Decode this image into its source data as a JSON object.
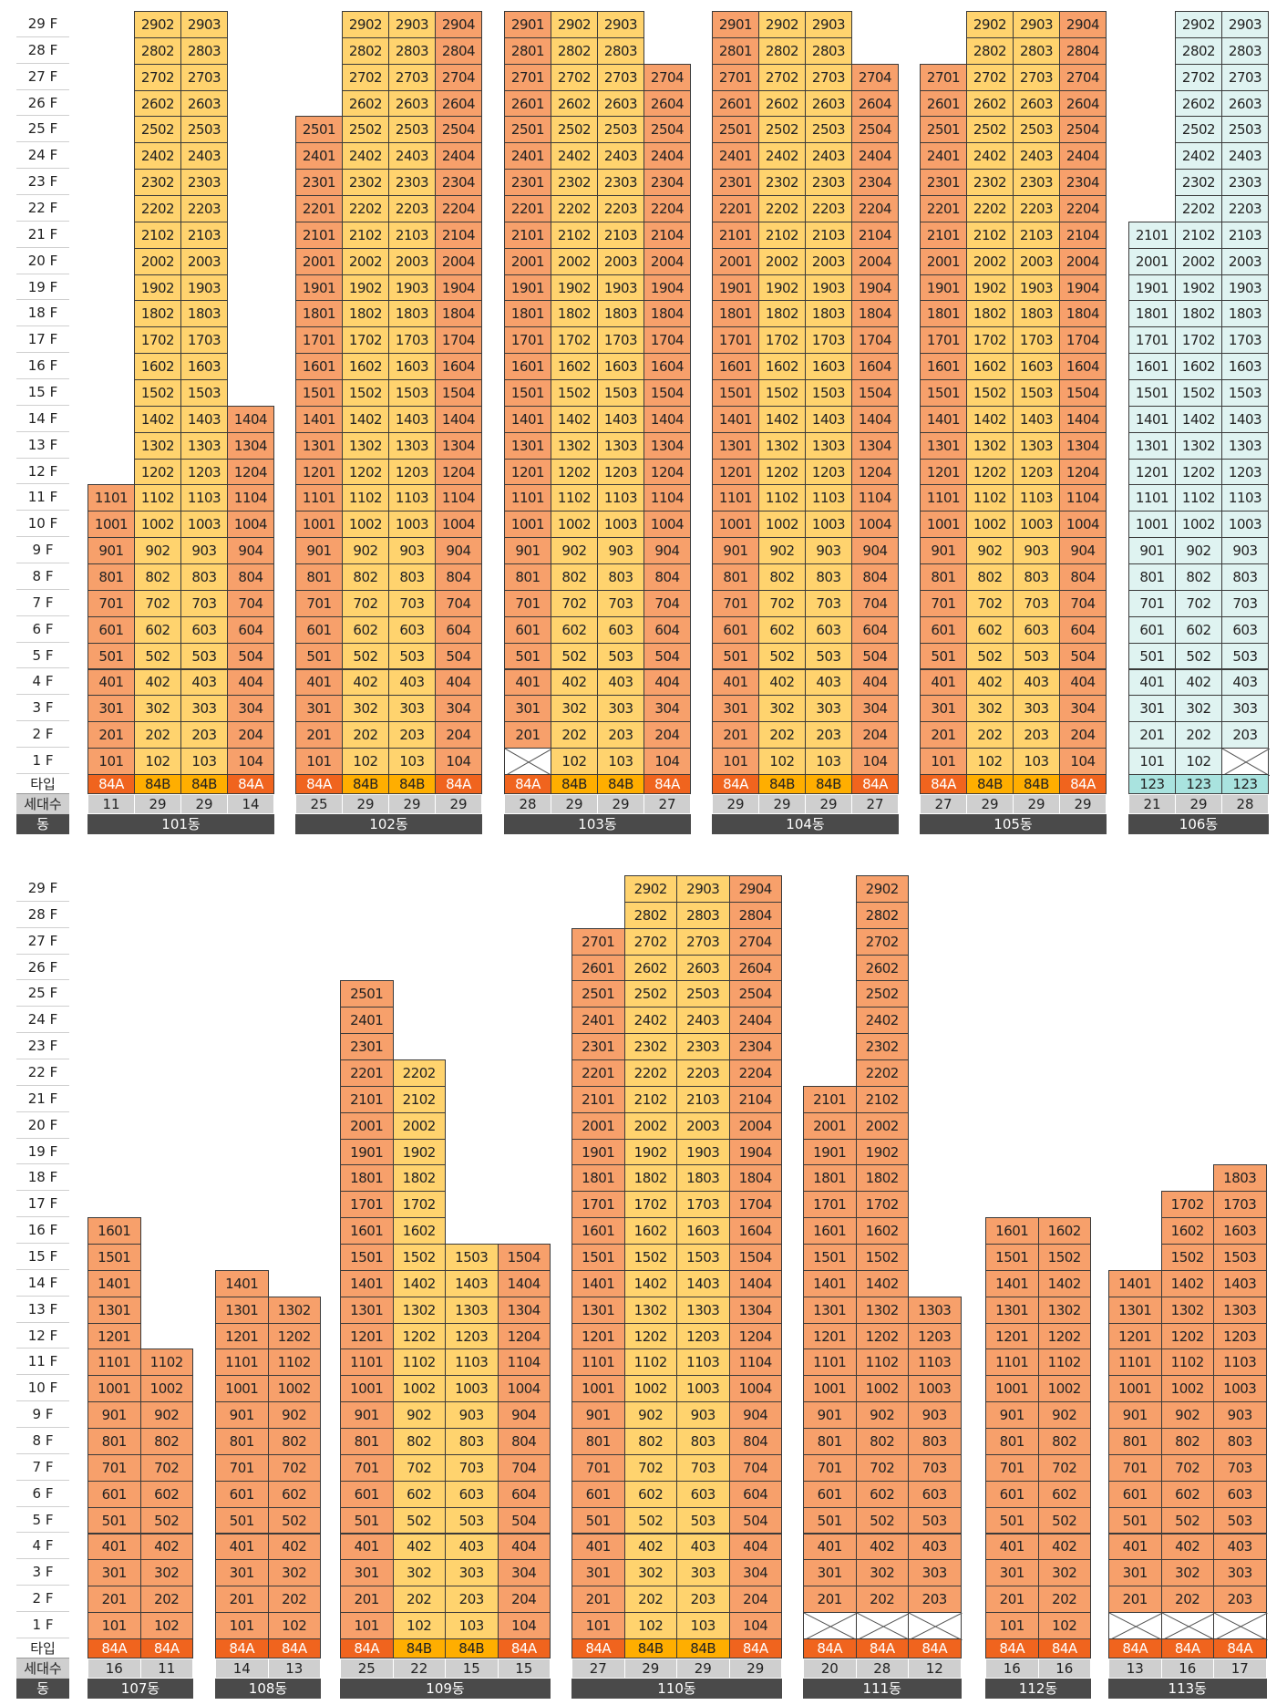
{
  "labels": {
    "floor_suffix": " F",
    "type_row": "타입",
    "count_row": "세대수",
    "building_row": "동"
  },
  "colors": {
    "yellow": "#ffd36e",
    "orange": "#f7a06b",
    "blue": "#dff3f1",
    "type_84A": "#f0641e",
    "type_84B": "#ffae00",
    "type_123": "#a9e3df"
  },
  "sections": [
    {
      "floors": 29,
      "buildings": [
        {
          "name": "101동",
          "lines": [
            {
              "top": 11,
              "type": "84A",
              "count": "11",
              "color": "orange"
            },
            {
              "top": 29,
              "type": "84B",
              "count": "29",
              "color": "yellow"
            },
            {
              "top": 29,
              "type": "84B",
              "count": "29",
              "color": "yellow"
            },
            {
              "top": 14,
              "type": "84A",
              "count": "14",
              "color": "orange"
            }
          ]
        },
        {
          "name": "102동",
          "lines": [
            {
              "top": 25,
              "type": "84A",
              "count": "25",
              "color": "orange"
            },
            {
              "top": 29,
              "type": "84B",
              "count": "29",
              "color": "yellow"
            },
            {
              "top": 29,
              "type": "84B",
              "count": "29",
              "color": "yellow"
            },
            {
              "top": 29,
              "type": "84A",
              "count": "29",
              "color": "orange"
            }
          ]
        },
        {
          "name": "103동",
          "lines": [
            {
              "top": 29,
              "type": "84A",
              "count": "28",
              "color": "orange",
              "empty": [
                1
              ]
            },
            {
              "top": 29,
              "type": "84B",
              "count": "29",
              "color": "yellow"
            },
            {
              "top": 29,
              "type": "84B",
              "count": "29",
              "color": "yellow"
            },
            {
              "top": 27,
              "type": "84A",
              "count": "27",
              "color": "orange"
            }
          ]
        },
        {
          "name": "104동",
          "lines": [
            {
              "top": 29,
              "type": "84A",
              "count": "29",
              "color": "orange"
            },
            {
              "top": 29,
              "type": "84B",
              "count": "29",
              "color": "yellow"
            },
            {
              "top": 29,
              "type": "84B",
              "count": "29",
              "color": "yellow"
            },
            {
              "top": 27,
              "type": "84A",
              "count": "27",
              "color": "orange"
            }
          ]
        },
        {
          "name": "105동",
          "lines": [
            {
              "top": 27,
              "type": "84A",
              "count": "27",
              "color": "orange"
            },
            {
              "top": 29,
              "type": "84B",
              "count": "29",
              "color": "yellow"
            },
            {
              "top": 29,
              "type": "84B",
              "count": "29",
              "color": "yellow"
            },
            {
              "top": 29,
              "type": "84A",
              "count": "29",
              "color": "orange"
            }
          ]
        },
        {
          "name": "106동",
          "lines": [
            {
              "top": 21,
              "type": "123",
              "count": "21",
              "color": "blue"
            },
            {
              "top": 29,
              "type": "123",
              "count": "29",
              "color": "blue"
            },
            {
              "top": 29,
              "type": "123",
              "count": "28",
              "color": "blue",
              "empty": [
                1
              ]
            }
          ]
        }
      ]
    },
    {
      "floors": 29,
      "buildings": [
        {
          "name": "107동",
          "lines": [
            {
              "top": 16,
              "type": "84A",
              "count": "16",
              "color": "orange"
            },
            {
              "top": 11,
              "type": "84A",
              "count": "11",
              "color": "orange"
            }
          ]
        },
        {
          "name": "108동",
          "lines": [
            {
              "top": 14,
              "type": "84A",
              "count": "14",
              "color": "orange"
            },
            {
              "top": 13,
              "type": "84A",
              "count": "13",
              "color": "orange"
            }
          ]
        },
        {
          "name": "109동",
          "lines": [
            {
              "top": 25,
              "type": "84A",
              "count": "25",
              "color": "orange"
            },
            {
              "top": 22,
              "type": "84B",
              "count": "22",
              "color": "yellow"
            },
            {
              "top": 15,
              "type": "84B",
              "count": "15",
              "color": "yellow"
            },
            {
              "top": 15,
              "type": "84A",
              "count": "15",
              "color": "orange"
            }
          ]
        },
        {
          "name": "110동",
          "lines": [
            {
              "top": 27,
              "type": "84A",
              "count": "27",
              "color": "orange"
            },
            {
              "top": 29,
              "type": "84B",
              "count": "29",
              "color": "yellow"
            },
            {
              "top": 29,
              "type": "84B",
              "count": "29",
              "color": "yellow"
            },
            {
              "top": 29,
              "type": "84A",
              "count": "29",
              "color": "orange"
            }
          ]
        },
        {
          "name": "111동",
          "lines": [
            {
              "top": 21,
              "type": "84A",
              "count": "20",
              "color": "orange",
              "empty": [
                1
              ]
            },
            {
              "top": 29,
              "type": "84A",
              "count": "28",
              "color": "orange",
              "empty": [
                1
              ]
            },
            {
              "top": 13,
              "type": "84A",
              "count": "12",
              "color": "orange",
              "empty": [
                1
              ]
            }
          ]
        },
        {
          "name": "112동",
          "lines": [
            {
              "top": 16,
              "type": "84A",
              "count": "16",
              "color": "orange"
            },
            {
              "top": 16,
              "type": "84A",
              "count": "16",
              "color": "orange"
            }
          ]
        },
        {
          "name": "113동",
          "lines": [
            {
              "top": 14,
              "type": "84A",
              "count": "13",
              "color": "orange",
              "empty": [
                1
              ]
            },
            {
              "top": 17,
              "type": "84A",
              "count": "16",
              "color": "orange",
              "empty": [
                1
              ]
            },
            {
              "top": 18,
              "type": "84A",
              "count": "17",
              "color": "orange",
              "empty": [
                1
              ]
            }
          ]
        }
      ]
    }
  ]
}
